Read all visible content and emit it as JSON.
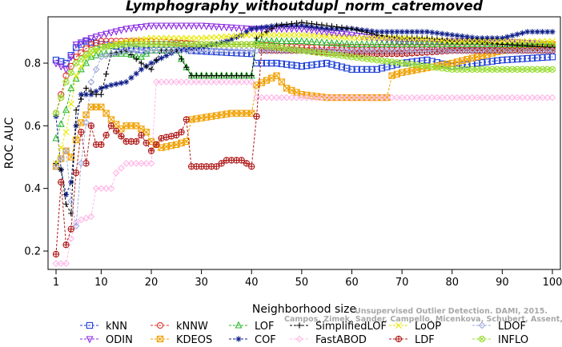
{
  "chart_data": {
    "type": "line",
    "title": "Lymphography_withoutdupl_norm_catremoved",
    "xlabel": "Neighborhood size",
    "ylabel": "ROC AUC",
    "xlim": [
      1,
      100
    ],
    "ylim": [
      0.15,
      0.95
    ],
    "x_ticks": [
      1,
      10,
      20,
      30,
      40,
      50,
      60,
      70,
      80,
      90,
      100
    ],
    "y_ticks": [
      0.2,
      0.4,
      0.6,
      0.8
    ],
    "grid": false,
    "legend_position": "bottom",
    "credit_lines": [
      "Unsupervised Outlier Detection. DAMI, 2015.",
      "Campos, Zimek, Sander, Campello, Micenkova, Schubert, Assent, Houle"
    ],
    "series": [
      {
        "name": "kNN",
        "color": "#1f3fd6",
        "marker": "square",
        "knots": [
          [
            1,
            0.81
          ],
          [
            3,
            0.8
          ],
          [
            5,
            0.85
          ],
          [
            7,
            0.87
          ],
          [
            10,
            0.86
          ],
          [
            15,
            0.85
          ],
          [
            19,
            0.84
          ],
          [
            20,
            0.86
          ],
          [
            25,
            0.86
          ],
          [
            28,
            0.84
          ],
          [
            40,
            0.83
          ],
          [
            41,
            0.8
          ],
          [
            45,
            0.8
          ],
          [
            50,
            0.79
          ],
          [
            55,
            0.8
          ],
          [
            60,
            0.78
          ],
          [
            65,
            0.78
          ],
          [
            70,
            0.8
          ],
          [
            75,
            0.81
          ],
          [
            80,
            0.79
          ],
          [
            85,
            0.8
          ],
          [
            90,
            0.81
          ],
          [
            100,
            0.82
          ]
        ]
      },
      {
        "name": "ODIN",
        "color": "#8a2be2",
        "marker": "triangle-down",
        "knots": [
          [
            1,
            0.8
          ],
          [
            3,
            0.78
          ],
          [
            5,
            0.86
          ],
          [
            8,
            0.88
          ],
          [
            10,
            0.89
          ],
          [
            15,
            0.91
          ],
          [
            20,
            0.92
          ],
          [
            30,
            0.92
          ],
          [
            40,
            0.91
          ],
          [
            50,
            0.91
          ],
          [
            60,
            0.89
          ],
          [
            65,
            0.88
          ],
          [
            70,
            0.87
          ],
          [
            80,
            0.87
          ],
          [
            90,
            0.87
          ],
          [
            100,
            0.86
          ]
        ]
      },
      {
        "name": "kNNW",
        "color": "#e0302a",
        "marker": "circle",
        "knots": [
          [
            1,
            0.64
          ],
          [
            3,
            0.76
          ],
          [
            5,
            0.82
          ],
          [
            8,
            0.86
          ],
          [
            10,
            0.87
          ],
          [
            20,
            0.87
          ],
          [
            30,
            0.86
          ],
          [
            40,
            0.86
          ],
          [
            50,
            0.85
          ],
          [
            60,
            0.85
          ],
          [
            70,
            0.85
          ],
          [
            80,
            0.85
          ],
          [
            90,
            0.85
          ],
          [
            100,
            0.85
          ]
        ]
      },
      {
        "name": "KDEOS",
        "color": "#f0a000",
        "marker": "square-x",
        "knots": [
          [
            1,
            0.47
          ],
          [
            3,
            0.52
          ],
          [
            4,
            0.5
          ],
          [
            6,
            0.61
          ],
          [
            8,
            0.66
          ],
          [
            10,
            0.66
          ],
          [
            12,
            0.62
          ],
          [
            14,
            0.59
          ],
          [
            15,
            0.6
          ],
          [
            17,
            0.6
          ],
          [
            19,
            0.58
          ],
          [
            20,
            0.55
          ],
          [
            22,
            0.53
          ],
          [
            25,
            0.54
          ],
          [
            27,
            0.55
          ],
          [
            28,
            0.62
          ],
          [
            32,
            0.63
          ],
          [
            36,
            0.64
          ],
          [
            40,
            0.64
          ],
          [
            41,
            0.73
          ],
          [
            45,
            0.76
          ],
          [
            47,
            0.72
          ],
          [
            50,
            0.7
          ],
          [
            55,
            0.69
          ],
          [
            60,
            0.69
          ],
          [
            65,
            0.69
          ],
          [
            67,
            0.69
          ],
          [
            68,
            0.76
          ],
          [
            70,
            0.77
          ],
          [
            80,
            0.8
          ],
          [
            90,
            0.84
          ],
          [
            100,
            0.86
          ]
        ]
      },
      {
        "name": "LOF",
        "color": "#2cb82c",
        "marker": "triangle-up",
        "knots": [
          [
            1,
            0.56
          ],
          [
            3,
            0.65
          ],
          [
            4,
            0.72
          ],
          [
            6,
            0.78
          ],
          [
            8,
            0.82
          ],
          [
            10,
            0.83
          ],
          [
            15,
            0.83
          ],
          [
            18,
            0.82
          ],
          [
            20,
            0.84
          ],
          [
            25,
            0.84
          ],
          [
            28,
            0.76
          ],
          [
            30,
            0.76
          ],
          [
            40,
            0.76
          ],
          [
            41,
            0.87
          ],
          [
            50,
            0.87
          ],
          [
            60,
            0.86
          ],
          [
            70,
            0.86
          ],
          [
            80,
            0.86
          ],
          [
            90,
            0.86
          ],
          [
            100,
            0.86
          ]
        ]
      },
      {
        "name": "COF",
        "color": "#10208a",
        "marker": "asterisk",
        "knots": [
          [
            1,
            0.63
          ],
          [
            2,
            0.46
          ],
          [
            3,
            0.38
          ],
          [
            4,
            0.42
          ],
          [
            5,
            0.6
          ],
          [
            6,
            0.7
          ],
          [
            8,
            0.7
          ],
          [
            10,
            0.72
          ],
          [
            12,
            0.73
          ],
          [
            15,
            0.74
          ],
          [
            18,
            0.78
          ],
          [
            20,
            0.8
          ],
          [
            25,
            0.84
          ],
          [
            30,
            0.85
          ],
          [
            35,
            0.87
          ],
          [
            38,
            0.89
          ],
          [
            40,
            0.91
          ],
          [
            45,
            0.92
          ],
          [
            50,
            0.92
          ],
          [
            55,
            0.91
          ],
          [
            60,
            0.91
          ],
          [
            65,
            0.9
          ],
          [
            70,
            0.9
          ],
          [
            75,
            0.9
          ],
          [
            80,
            0.89
          ],
          [
            85,
            0.88
          ],
          [
            90,
            0.88
          ],
          [
            95,
            0.9
          ],
          [
            100,
            0.9
          ]
        ]
      },
      {
        "name": "SimplifiedLOF",
        "color": "#000000",
        "marker": "plus",
        "knots": [
          [
            1,
            0.48
          ],
          [
            2,
            0.46
          ],
          [
            3,
            0.35
          ],
          [
            4,
            0.32
          ],
          [
            5,
            0.65
          ],
          [
            7,
            0.72
          ],
          [
            9,
            0.7
          ],
          [
            10,
            0.7
          ],
          [
            12,
            0.83
          ],
          [
            15,
            0.84
          ],
          [
            18,
            0.8
          ],
          [
            20,
            0.78
          ],
          [
            22,
            0.84
          ],
          [
            25,
            0.84
          ],
          [
            28,
            0.76
          ],
          [
            30,
            0.76
          ],
          [
            40,
            0.76
          ],
          [
            41,
            0.88
          ],
          [
            45,
            0.92
          ],
          [
            50,
            0.93
          ],
          [
            55,
            0.92
          ],
          [
            60,
            0.91
          ],
          [
            65,
            0.89
          ],
          [
            70,
            0.88
          ],
          [
            75,
            0.88
          ],
          [
            80,
            0.87
          ],
          [
            85,
            0.87
          ],
          [
            90,
            0.86
          ],
          [
            100,
            0.85
          ]
        ]
      },
      {
        "name": "FastABOD",
        "color": "#ffb6e6",
        "marker": "diamond",
        "knots": [
          [
            1,
            0.16
          ],
          [
            3,
            0.16
          ],
          [
            4,
            0.24
          ],
          [
            5,
            0.29
          ],
          [
            6,
            0.3
          ],
          [
            8,
            0.31
          ],
          [
            9,
            0.4
          ],
          [
            12,
            0.4
          ],
          [
            13,
            0.45
          ],
          [
            15,
            0.48
          ],
          [
            20,
            0.48
          ],
          [
            21,
            0.74
          ],
          [
            40,
            0.74
          ],
          [
            41,
            0.69
          ],
          [
            60,
            0.69
          ],
          [
            80,
            0.69
          ],
          [
            100,
            0.69
          ]
        ]
      },
      {
        "name": "LoOP",
        "color": "#e8e800",
        "marker": "x",
        "knots": [
          [
            1,
            0.48
          ],
          [
            3,
            0.58
          ],
          [
            5,
            0.76
          ],
          [
            7,
            0.82
          ],
          [
            10,
            0.85
          ],
          [
            15,
            0.87
          ],
          [
            20,
            0.88
          ],
          [
            30,
            0.88
          ],
          [
            40,
            0.89
          ],
          [
            50,
            0.89
          ],
          [
            60,
            0.88
          ],
          [
            70,
            0.88
          ],
          [
            80,
            0.87
          ],
          [
            90,
            0.87
          ],
          [
            100,
            0.87
          ]
        ]
      },
      {
        "name": "LDF",
        "color": "#b01818",
        "marker": "circle-plus",
        "knots": [
          [
            1,
            0.19
          ],
          [
            2,
            0.42
          ],
          [
            3,
            0.22
          ],
          [
            4,
            0.27
          ],
          [
            5,
            0.45
          ],
          [
            6,
            0.58
          ],
          [
            7,
            0.48
          ],
          [
            8,
            0.6
          ],
          [
            9,
            0.54
          ],
          [
            10,
            0.54
          ],
          [
            12,
            0.6
          ],
          [
            15,
            0.55
          ],
          [
            17,
            0.55
          ],
          [
            18,
            0.57
          ],
          [
            20,
            0.52
          ],
          [
            22,
            0.56
          ],
          [
            25,
            0.57
          ],
          [
            26,
            0.58
          ],
          [
            27,
            0.62
          ],
          [
            28,
            0.47
          ],
          [
            33,
            0.47
          ],
          [
            35,
            0.49
          ],
          [
            38,
            0.49
          ],
          [
            40,
            0.47
          ],
          [
            41,
            0.63
          ],
          [
            42,
            0.84
          ],
          [
            50,
            0.84
          ],
          [
            60,
            0.83
          ],
          [
            70,
            0.83
          ],
          [
            80,
            0.84
          ],
          [
            90,
            0.84
          ],
          [
            100,
            0.84
          ]
        ]
      },
      {
        "name": "LDOF",
        "color": "#9fa8dc",
        "marker": "diamond-open",
        "knots": [
          [
            1,
            0.47
          ],
          [
            3,
            0.52
          ],
          [
            4,
            0.36
          ],
          [
            5,
            0.28
          ],
          [
            6,
            0.48
          ],
          [
            8,
            0.74
          ],
          [
            10,
            0.82
          ],
          [
            15,
            0.84
          ],
          [
            20,
            0.84
          ],
          [
            30,
            0.84
          ],
          [
            40,
            0.84
          ],
          [
            50,
            0.84
          ],
          [
            60,
            0.84
          ],
          [
            70,
            0.84
          ],
          [
            80,
            0.84
          ],
          [
            90,
            0.84
          ],
          [
            100,
            0.84
          ]
        ]
      },
      {
        "name": "INFLO",
        "color": "#99dd33",
        "marker": "circle-x",
        "knots": [
          [
            1,
            0.64
          ],
          [
            3,
            0.74
          ],
          [
            5,
            0.8
          ],
          [
            8,
            0.84
          ],
          [
            10,
            0.85
          ],
          [
            15,
            0.86
          ],
          [
            20,
            0.86
          ],
          [
            30,
            0.86
          ],
          [
            40,
            0.86
          ],
          [
            45,
            0.85
          ],
          [
            50,
            0.84
          ],
          [
            60,
            0.82
          ],
          [
            70,
            0.8
          ],
          [
            75,
            0.79
          ],
          [
            80,
            0.78
          ],
          [
            90,
            0.78
          ],
          [
            100,
            0.78
          ]
        ]
      }
    ]
  }
}
